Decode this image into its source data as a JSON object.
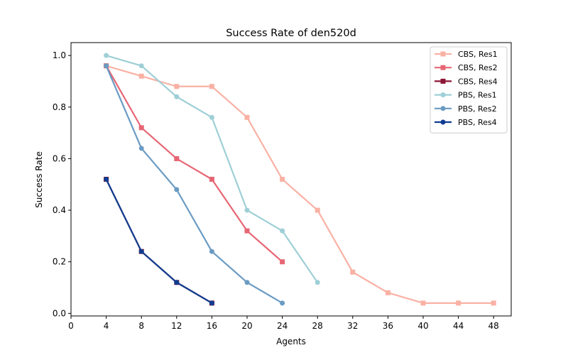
{
  "chart_data": {
    "type": "line",
    "title": "Success Rate of den520d",
    "xlabel": "Agents",
    "ylabel": "Success Rate",
    "xlim": [
      0,
      50
    ],
    "ylim": [
      -0.01,
      1.05
    ],
    "xticks": [
      0,
      4,
      8,
      12,
      16,
      20,
      24,
      28,
      32,
      36,
      40,
      44,
      48
    ],
    "yticks": [
      0.0,
      0.2,
      0.4,
      0.6,
      0.8,
      1.0
    ],
    "ytick_labels": [
      "0.0",
      "0.2",
      "0.4",
      "0.6",
      "0.8",
      "1.0"
    ],
    "grid": false,
    "legend_position": "top-right",
    "series": [
      {
        "name": "CBS, Res1",
        "color": "#f9b1a4",
        "marker": "square",
        "x": [
          4,
          8,
          12,
          16,
          20,
          24,
          28,
          32,
          36,
          40,
          44,
          48
        ],
        "y": [
          0.96,
          0.92,
          0.88,
          0.88,
          0.76,
          0.52,
          0.4,
          0.16,
          0.08,
          0.04,
          0.04,
          0.04
        ]
      },
      {
        "name": "CBS, Res2",
        "color": "#e76674",
        "marker": "square",
        "x": [
          4,
          8,
          12,
          16,
          20,
          24
        ],
        "y": [
          0.96,
          0.72,
          0.6,
          0.52,
          0.32,
          0.2
        ]
      },
      {
        "name": "CBS, Res4",
        "color": "#8b1535",
        "marker": "square",
        "x": [
          4,
          8,
          12,
          16
        ],
        "y": [
          0.52,
          0.24,
          0.12,
          0.04
        ]
      },
      {
        "name": "PBS, Res1",
        "color": "#9ecfd6",
        "marker": "circle",
        "x": [
          4,
          8,
          12,
          16,
          20,
          24,
          28
        ],
        "y": [
          1.0,
          0.96,
          0.84,
          0.76,
          0.4,
          0.32,
          0.12
        ]
      },
      {
        "name": "PBS, Res2",
        "color": "#6a9bc3",
        "marker": "circle",
        "x": [
          4,
          8,
          12,
          16,
          20,
          24
        ],
        "y": [
          0.96,
          0.64,
          0.48,
          0.24,
          0.12,
          0.04
        ]
      },
      {
        "name": "PBS, Res4",
        "color": "#0f3d91",
        "marker": "circle",
        "x": [
          4,
          8,
          12,
          16
        ],
        "y": [
          0.52,
          0.24,
          0.12,
          0.04
        ]
      }
    ]
  }
}
